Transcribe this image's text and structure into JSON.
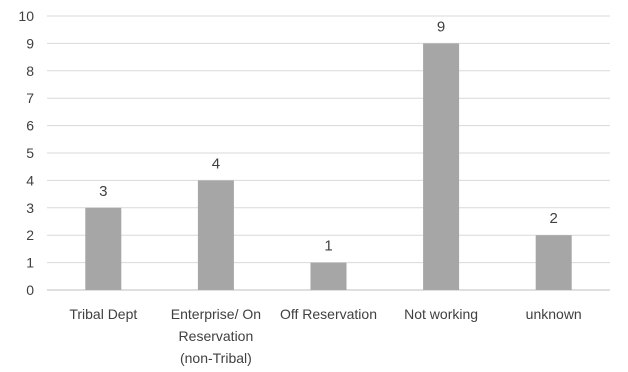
{
  "chart_data": {
    "type": "bar",
    "categories": [
      [
        "Tribal Dept"
      ],
      [
        "Enterprise/ On",
        "Reservation",
        "(non-Tribal)"
      ],
      [
        "Off Reservation"
      ],
      [
        "Not working"
      ],
      [
        "unknown"
      ]
    ],
    "values": [
      3,
      4,
      1,
      9,
      2
    ],
    "data_labels": [
      "3",
      "4",
      "1",
      "9",
      "2"
    ],
    "y_ticks": [
      "0",
      "1",
      "2",
      "3",
      "4",
      "5",
      "6",
      "7",
      "8",
      "9",
      "10"
    ],
    "ylim": [
      0,
      10
    ],
    "grid": true,
    "legend": "none",
    "title": "",
    "xlabel": "",
    "ylabel": "",
    "colors": {
      "bar": "#a6a6a6",
      "grid": "#d9d9d9",
      "axis": "#bfbfbf",
      "text": "#404040"
    }
  }
}
